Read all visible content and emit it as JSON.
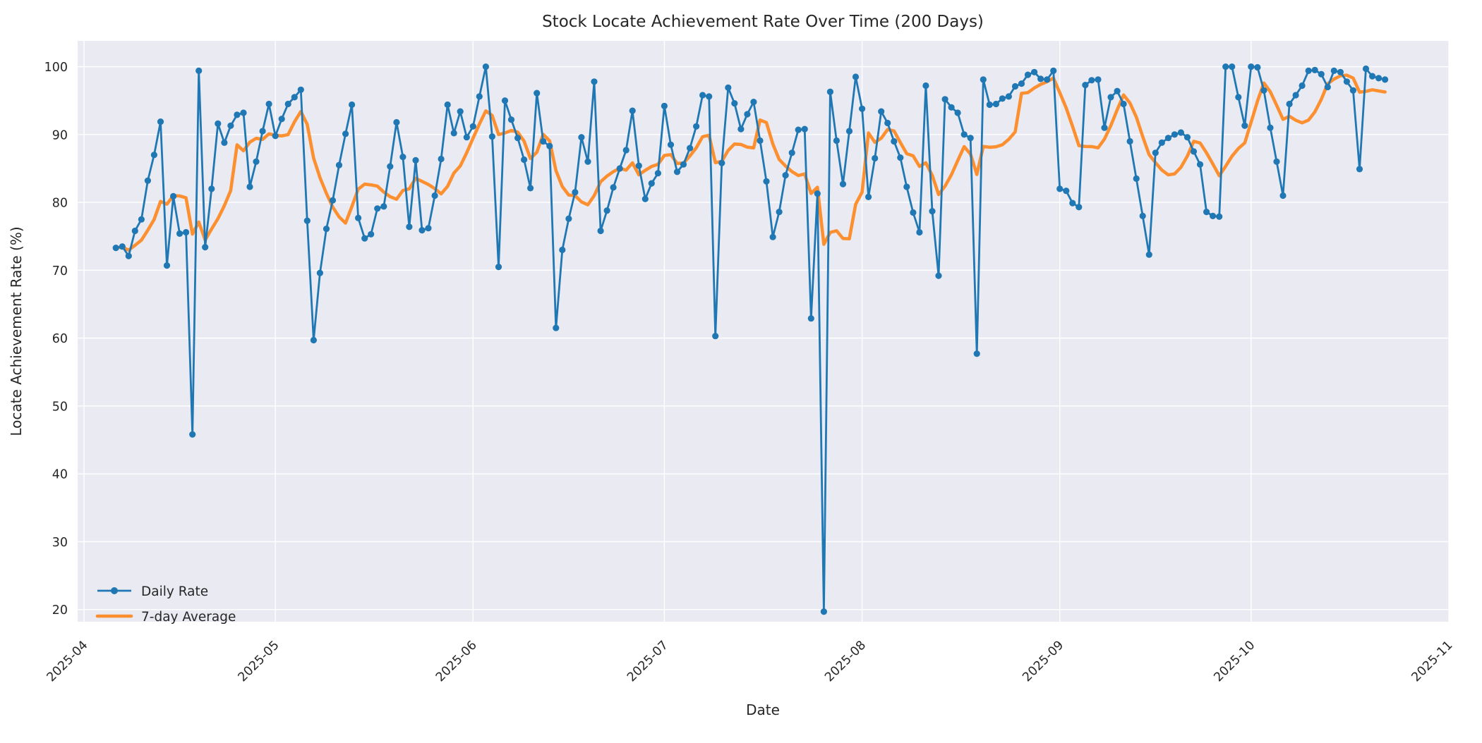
{
  "figure": {
    "title": "Stock Locate Achievement Rate Over Time (200 Days)",
    "xlabel": "Date",
    "ylabel": "Locate Achievement Rate (%)"
  },
  "legend": {
    "position": "lower left",
    "items": [
      {
        "label": "Daily Rate",
        "color": "#1f77b4",
        "style": "line-with-marker"
      },
      {
        "label": "7-day Average",
        "color": "#ff7f0e",
        "style": "thick-line"
      }
    ]
  },
  "colors": {
    "figure_background": "#ffffff",
    "plot_background": "#eaeaf2",
    "grid": "#ffffff",
    "text": "#262626",
    "daily_line": "#1f77b4",
    "average_line": "#ff7f0e"
  },
  "chart_data": {
    "type": "line",
    "title": "Stock Locate Achievement Rate Over Time (200 Days)",
    "xlabel": "Date",
    "ylabel": "Locate Achievement Rate (%)",
    "grid": true,
    "legend_position": "lower left",
    "xlim": [
      "2025-03-31",
      "2025-11-01"
    ],
    "ylim": [
      18.2,
      103.8
    ],
    "y_ticks": [
      20,
      30,
      40,
      50,
      60,
      70,
      80,
      90,
      100
    ],
    "x_ticks": [
      "2025-04-01",
      "2025-05-01",
      "2025-06-01",
      "2025-07-01",
      "2025-08-01",
      "2025-09-01",
      "2025-10-01",
      "2025-11-01"
    ],
    "x_tick_labels": [
      "2025-04",
      "2025-05",
      "2025-06",
      "2025-07",
      "2025-08",
      "2025-09",
      "2025-10",
      "2025-11"
    ],
    "start_date": "2025-04-06",
    "series": [
      {
        "name": "Daily Rate",
        "color": "#1f77b4",
        "line_width": 2.8,
        "marker": "circle",
        "marker_radius": 4.6,
        "values": [
          73.3,
          73.5,
          72.1,
          75.8,
          77.5,
          83.2,
          87.0,
          91.9,
          70.7,
          80.9,
          75.4,
          75.6,
          45.8,
          99.4,
          73.4,
          82.0,
          91.6,
          88.8,
          91.3,
          92.9,
          93.2,
          82.3,
          86.0,
          90.5,
          94.5,
          89.8,
          92.3,
          94.5,
          95.5,
          96.6,
          77.3,
          59.7,
          69.6,
          76.1,
          80.3,
          85.5,
          90.1,
          94.4,
          77.7,
          74.7,
          75.3,
          79.1,
          79.4,
          85.3,
          91.8,
          86.7,
          76.4,
          86.2,
          75.9,
          76.2,
          81.0,
          86.4,
          94.4,
          90.2,
          93.4,
          89.6,
          91.2,
          95.6,
          100.0,
          89.7,
          70.5,
          95.0,
          92.2,
          89.5,
          86.3,
          82.1,
          96.1,
          89.0,
          88.3,
          61.5,
          73.0,
          77.6,
          81.5,
          89.6,
          86.0,
          97.8,
          75.8,
          78.8,
          82.2,
          85.0,
          87.7,
          93.5,
          85.4,
          80.5,
          82.8,
          84.3,
          94.2,
          88.5,
          84.5,
          85.6,
          88.0,
          91.2,
          95.8,
          95.6,
          60.3,
          85.8,
          96.9,
          94.6,
          90.8,
          93.0,
          94.8,
          89.1,
          83.1,
          74.9,
          78.6,
          84.0,
          87.3,
          90.7,
          90.8,
          62.9,
          81.3,
          19.7,
          96.3,
          89.1,
          82.7,
          90.5,
          98.5,
          93.8,
          80.8,
          86.5,
          93.4,
          91.7,
          89.0,
          86.6,
          82.3,
          78.5,
          75.6,
          97.2,
          78.7,
          69.2,
          95.2,
          94.0,
          93.2,
          90.0,
          89.5,
          57.7,
          98.1,
          94.4,
          94.5,
          95.3,
          95.6,
          97.1,
          97.5,
          98.8,
          99.2,
          98.2,
          98.1,
          99.4,
          82.0,
          81.7,
          79.9,
          79.3,
          97.3,
          98.0,
          98.1,
          91.0,
          95.5,
          96.4,
          94.5,
          89.0,
          83.5,
          78.0,
          72.3,
          87.3,
          88.8,
          89.5,
          90.0,
          90.3,
          89.6,
          87.5,
          85.6,
          78.6,
          78.0,
          77.9,
          100.0,
          100.0,
          95.5,
          91.3,
          100.0,
          99.9,
          96.5,
          91.0,
          86.0,
          81.0,
          94.5,
          95.8,
          97.2,
          99.4,
          99.5,
          98.9,
          97.0,
          99.4,
          99.2,
          97.8,
          96.5,
          84.9,
          99.7,
          98.6,
          98.3,
          98.1
        ]
      },
      {
        "name": "7-day Average",
        "color": "#ff7f0e",
        "line_width": 4.6,
        "opacity": 0.85,
        "marker": "none",
        "derived_from": "Daily Rate",
        "derivation": "7-day rolling mean (min window 1)"
      }
    ]
  }
}
